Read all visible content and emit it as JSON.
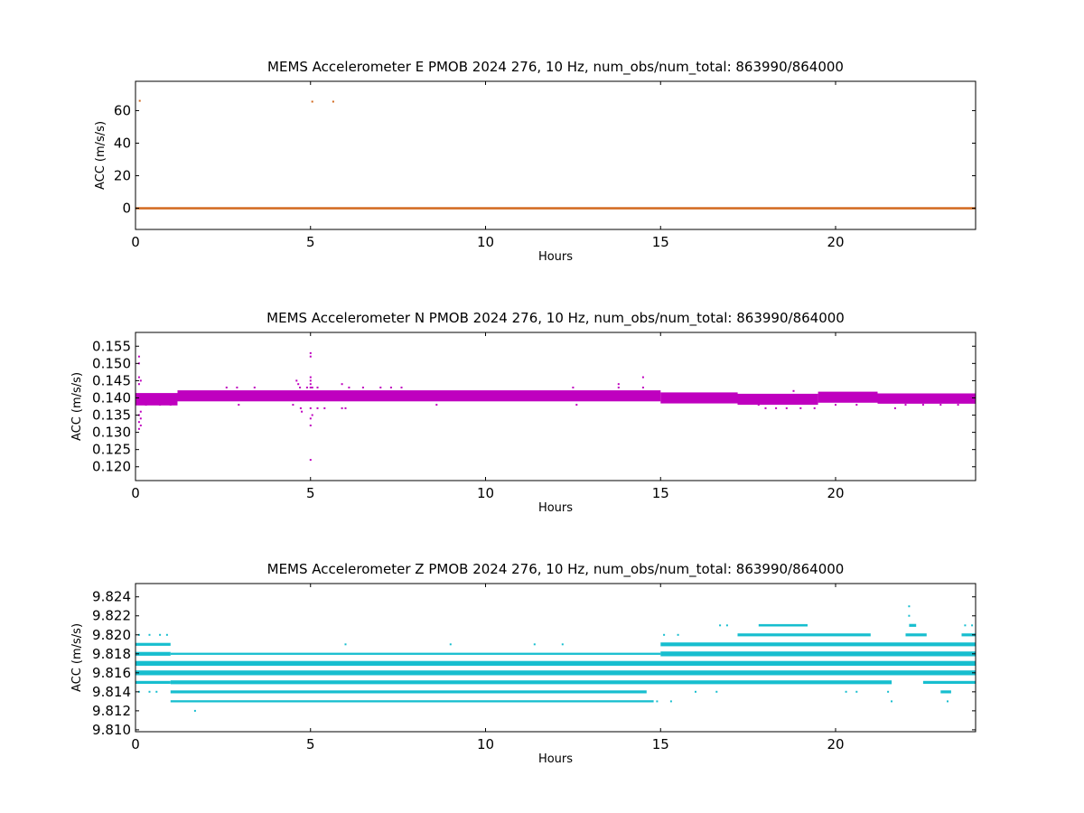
{
  "chart_data": [
    {
      "type": "scatter",
      "title": "MEMS Accelerometer E PMOB 2024 276, 10 Hz, num_obs/num_total: 863990/864000",
      "xlabel": "Hours",
      "ylabel": "ACC (m/s/s)",
      "xlim": [
        0,
        24
      ],
      "ylim": [
        -13,
        78
      ],
      "xticks": [
        "0",
        "5",
        "10",
        "15",
        "20"
      ],
      "yticks": [
        "0",
        "20",
        "40",
        "60"
      ],
      "color": "#d2691e",
      "bands": [
        {
          "y": 0.0,
          "x0": 0,
          "x1": 24,
          "thickness": 1.4
        }
      ],
      "points": [
        [
          0.12,
          66
        ],
        [
          5.05,
          65.5
        ],
        [
          5.65,
          65.5
        ]
      ]
    },
    {
      "type": "scatter",
      "title": "MEMS Accelerometer N PMOB 2024 276, 10 Hz, num_obs/num_total: 863990/864000",
      "xlabel": "Hours",
      "ylabel": "ACC (m/s/s)",
      "xlim": [
        0,
        24
      ],
      "ylim": [
        0.116,
        0.159
      ],
      "xticks": [
        "0",
        "5",
        "10",
        "15",
        "20"
      ],
      "yticks": [
        "0.120",
        "0.125",
        "0.130",
        "0.135",
        "0.140",
        "0.145",
        "0.150",
        "0.155"
      ],
      "color": "#bf00bf",
      "bands": [
        {
          "y": 0.1396,
          "x0": 0,
          "x1": 1.2,
          "thickness": 0.0036
        },
        {
          "y": 0.1406,
          "x0": 1.2,
          "x1": 15,
          "thickness": 0.0032
        },
        {
          "y": 0.14,
          "x0": 15,
          "x1": 17.2,
          "thickness": 0.0032
        },
        {
          "y": 0.1396,
          "x0": 17.2,
          "x1": 19.5,
          "thickness": 0.0032
        },
        {
          "y": 0.1402,
          "x0": 19.5,
          "x1": 21.2,
          "thickness": 0.0032
        },
        {
          "y": 0.1398,
          "x0": 21.2,
          "x1": 24,
          "thickness": 0.003
        }
      ],
      "points": [
        [
          0.1,
          0.152
        ],
        [
          0.1,
          0.15
        ],
        [
          0.1,
          0.146
        ],
        [
          0.1,
          0.144
        ],
        [
          0.1,
          0.135
        ],
        [
          0.1,
          0.133
        ],
        [
          0.1,
          0.131
        ],
        [
          0.15,
          0.145
        ],
        [
          0.15,
          0.136
        ],
        [
          0.15,
          0.134
        ],
        [
          0.15,
          0.132
        ],
        [
          0.3,
          0.138
        ],
        [
          0.7,
          0.138
        ],
        [
          1.0,
          0.138
        ],
        [
          2.6,
          0.143
        ],
        [
          2.9,
          0.143
        ],
        [
          2.95,
          0.138
        ],
        [
          3.4,
          0.143
        ],
        [
          4.5,
          0.138
        ],
        [
          4.6,
          0.145
        ],
        [
          4.65,
          0.144
        ],
        [
          4.7,
          0.143
        ],
        [
          4.72,
          0.137
        ],
        [
          4.75,
          0.136
        ],
        [
          4.9,
          0.143
        ],
        [
          5.0,
          0.153
        ],
        [
          5.0,
          0.152
        ],
        [
          5.0,
          0.146
        ],
        [
          5.0,
          0.145
        ],
        [
          5.0,
          0.144
        ],
        [
          5.0,
          0.143
        ],
        [
          5.0,
          0.137
        ],
        [
          5.0,
          0.134
        ],
        [
          5.0,
          0.132
        ],
        [
          5.0,
          0.122
        ],
        [
          5.05,
          0.143
        ],
        [
          5.05,
          0.135
        ],
        [
          5.2,
          0.143
        ],
        [
          5.2,
          0.137
        ],
        [
          5.4,
          0.137
        ],
        [
          5.9,
          0.137
        ],
        [
          6.0,
          0.137
        ],
        [
          5.9,
          0.144
        ],
        [
          6.1,
          0.143
        ],
        [
          6.5,
          0.143
        ],
        [
          7.0,
          0.143
        ],
        [
          7.3,
          0.143
        ],
        [
          7.6,
          0.143
        ],
        [
          8.6,
          0.138
        ],
        [
          12.5,
          0.143
        ],
        [
          12.6,
          0.138
        ],
        [
          13.8,
          0.144
        ],
        [
          13.8,
          0.143
        ],
        [
          14.5,
          0.146
        ],
        [
          14.5,
          0.143
        ],
        [
          17.8,
          0.138
        ],
        [
          18.0,
          0.137
        ],
        [
          18.3,
          0.137
        ],
        [
          18.6,
          0.137
        ],
        [
          18.8,
          0.142
        ],
        [
          19.0,
          0.137
        ],
        [
          19.4,
          0.137
        ],
        [
          20.0,
          0.138
        ],
        [
          20.6,
          0.138
        ],
        [
          21.7,
          0.137
        ],
        [
          22.0,
          0.138
        ],
        [
          22.5,
          0.138
        ],
        [
          23.0,
          0.138
        ],
        [
          23.5,
          0.138
        ]
      ]
    },
    {
      "type": "scatter",
      "title": "MEMS Accelerometer Z PMOB 2024 276, 10 Hz, num_obs/num_total: 863990/864000",
      "xlabel": "Hours",
      "ylabel": "ACC (m/s/s)",
      "xlim": [
        0,
        24
      ],
      "ylim": [
        9.8098,
        9.8254
      ],
      "xticks": [
        "0",
        "5",
        "10",
        "15",
        "20"
      ],
      "yticks": [
        "9.810",
        "9.812",
        "9.814",
        "9.816",
        "9.818",
        "9.820",
        "9.822",
        "9.824"
      ],
      "color": "#17becf",
      "bands": [
        {
          "y": 9.813,
          "x0": 1.0,
          "x1": 14.8,
          "thickness": 0.00022
        },
        {
          "y": 9.814,
          "x0": 1.0,
          "x1": 14.6,
          "thickness": 0.0003
        },
        {
          "y": 9.814,
          "x0": 23.0,
          "x1": 23.3,
          "thickness": 0.0003
        },
        {
          "y": 9.815,
          "x0": 0,
          "x1": 1.0,
          "thickness": 0.0003
        },
        {
          "y": 9.815,
          "x0": 1.0,
          "x1": 21.6,
          "thickness": 0.0004
        },
        {
          "y": 9.815,
          "x0": 22.5,
          "x1": 24,
          "thickness": 0.0003
        },
        {
          "y": 9.816,
          "x0": 0,
          "x1": 24,
          "thickness": 0.0005
        },
        {
          "y": 9.817,
          "x0": 0,
          "x1": 24,
          "thickness": 0.0005
        },
        {
          "y": 9.818,
          "x0": 0,
          "x1": 1.0,
          "thickness": 0.0004
        },
        {
          "y": 9.818,
          "x0": 1.0,
          "x1": 15,
          "thickness": 0.00022
        },
        {
          "y": 9.818,
          "x0": 15,
          "x1": 24,
          "thickness": 0.0005
        },
        {
          "y": 9.819,
          "x0": 0,
          "x1": 1.0,
          "thickness": 0.0003
        },
        {
          "y": 9.819,
          "x0": 15,
          "x1": 24,
          "thickness": 0.0004
        },
        {
          "y": 9.82,
          "x0": 17.2,
          "x1": 21.0,
          "thickness": 0.0003
        },
        {
          "y": 9.82,
          "x0": 22.0,
          "x1": 22.6,
          "thickness": 0.0003
        },
        {
          "y": 9.82,
          "x0": 23.6,
          "x1": 24,
          "thickness": 0.0003
        },
        {
          "y": 9.821,
          "x0": 17.8,
          "x1": 19.2,
          "thickness": 0.00025
        },
        {
          "y": 9.821,
          "x0": 22.1,
          "x1": 22.3,
          "thickness": 0.0003
        }
      ],
      "points": [
        [
          0.1,
          9.82
        ],
        [
          0.4,
          9.82
        ],
        [
          0.7,
          9.82
        ],
        [
          0.9,
          9.82
        ],
        [
          0.1,
          9.814
        ],
        [
          0.4,
          9.814
        ],
        [
          0.6,
          9.814
        ],
        [
          1.7,
          9.812
        ],
        [
          6.0,
          9.819
        ],
        [
          9.0,
          9.819
        ],
        [
          11.4,
          9.819
        ],
        [
          12.2,
          9.819
        ],
        [
          14.9,
          9.813
        ],
        [
          15.3,
          9.813
        ],
        [
          16.0,
          9.814
        ],
        [
          16.6,
          9.814
        ],
        [
          15.1,
          9.82
        ],
        [
          15.5,
          9.82
        ],
        [
          16.7,
          9.821
        ],
        [
          16.9,
          9.821
        ],
        [
          20.3,
          9.814
        ],
        [
          20.6,
          9.814
        ],
        [
          21.5,
          9.814
        ],
        [
          21.6,
          9.813
        ],
        [
          22.1,
          9.823
        ],
        [
          22.1,
          9.822
        ],
        [
          23.2,
          9.813
        ],
        [
          23.7,
          9.821
        ],
        [
          23.9,
          9.821
        ]
      ]
    }
  ]
}
